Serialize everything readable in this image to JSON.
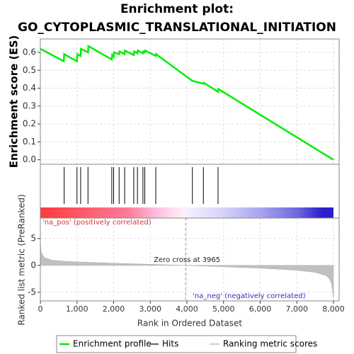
{
  "chart_data": [
    {
      "type": "line",
      "title": "Enrichment plot:",
      "subtitle": "GO_CYTOPLASMIC_TRANSLATIONAL_INITIATION",
      "ylabel": "Enrichment score (ES)",
      "xlim": [
        0,
        8155
      ],
      "ylim": [
        -0.025,
        0.675
      ],
      "yticks": [
        {
          "value": 0,
          "label": "0.0"
        },
        0.1,
        0.2,
        0.3,
        0.4,
        0.5,
        0.6
      ],
      "grid": true,
      "series": [
        {
          "name": "Enrichment profile",
          "color": "#00ee00",
          "x": [
            0,
            640,
            650,
            1000,
            1010,
            1100,
            1110,
            1300,
            1310,
            1950,
            1960,
            2000,
            2010,
            2150,
            2160,
            2300,
            2310,
            2550,
            2560,
            2650,
            2660,
            2800,
            2810,
            2850,
            2860,
            3150,
            3160,
            4150,
            4160,
            4450,
            4460,
            4850,
            4860,
            8000
          ],
          "values": [
            0.62,
            0.55,
            0.59,
            0.55,
            0.59,
            0.58,
            0.62,
            0.6,
            0.635,
            0.56,
            0.585,
            0.575,
            0.6,
            0.59,
            0.605,
            0.59,
            0.61,
            0.585,
            0.605,
            0.595,
            0.61,
            0.595,
            0.605,
            0.6,
            0.61,
            0.58,
            0.59,
            0.44,
            0.44,
            0.425,
            0.43,
            0.38,
            0.395,
            0.0
          ]
        }
      ]
    },
    {
      "type": "hits",
      "xlim": [
        0,
        8155
      ],
      "series": [
        {
          "name": "Hits",
          "color": "#000000",
          "x": [
            650,
            1000,
            1100,
            1300,
            1950,
            2000,
            2150,
            2300,
            2550,
            2650,
            2800,
            2850,
            3150,
            4150,
            4450,
            4850
          ]
        }
      ]
    },
    {
      "type": "area",
      "ylabel": "Ranked list metric (PreRanked)",
      "xlabel": "Rank in Ordered Dataset",
      "xlim": [
        0,
        8155
      ],
      "ylim": [
        -6.6,
        8.8
      ],
      "xticks": [
        0,
        {
          "value": 1000,
          "label": "1,000"
        },
        {
          "value": 2000,
          "label": "2,000"
        },
        {
          "value": 3000,
          "label": "3,000"
        },
        {
          "value": 4000,
          "label": "4,000"
        },
        {
          "value": 5000,
          "label": "5,000"
        },
        {
          "value": 6000,
          "label": "6,000"
        },
        {
          "value": 7000,
          "label": "7,000"
        },
        {
          "value": 8000,
          "label": "8,000"
        }
      ],
      "yticks": [
        -5,
        0,
        5
      ],
      "grid": true,
      "zero_cross": 3965,
      "annotations": [
        "'na_pos' (positively correlated)",
        "Zero cross at 3965",
        "'na_neg' (negatively correlated)"
      ],
      "series": [
        {
          "name": "Ranking metric scores",
          "color": "#c0c0c0",
          "x": [
            0,
            20,
            100,
            300,
            600,
            1000,
            2000,
            3000,
            3965,
            5000,
            6000,
            7000,
            7500,
            7800,
            7900,
            7950,
            8000
          ],
          "values": [
            4.5,
            2.5,
            1.5,
            1.0,
            0.8,
            0.65,
            0.4,
            0.2,
            0,
            -0.25,
            -0.5,
            -0.9,
            -1.3,
            -1.9,
            -2.6,
            -3.5,
            -6.0
          ]
        }
      ]
    }
  ]
}
